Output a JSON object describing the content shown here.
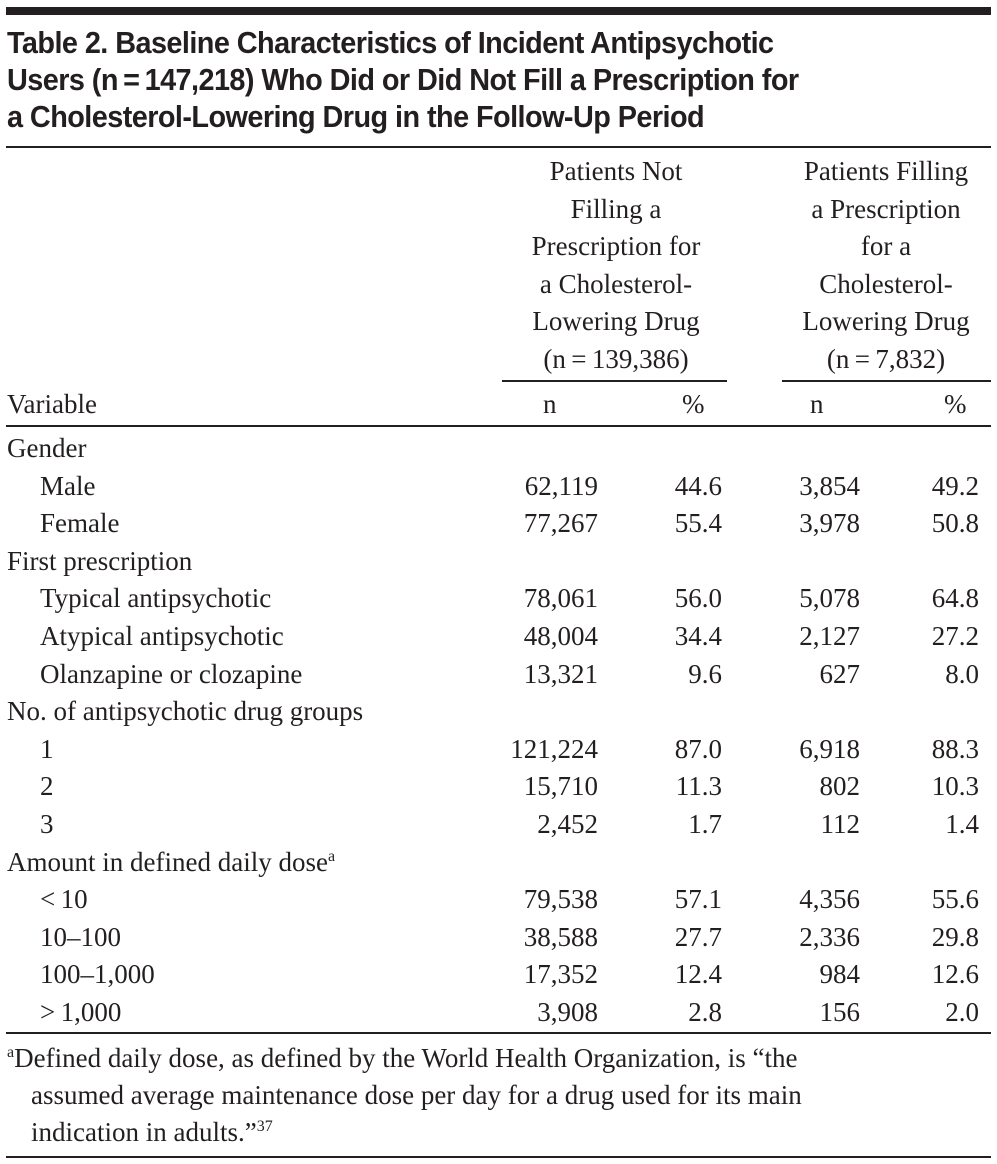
{
  "table": {
    "title_lines": [
      "Table 2. Baseline Characteristics of Incident Antipsychotic",
      "Users (n = 147,218) Who Did or Did Not Fill a Prescription for",
      "a Cholesterol-Lowering Drug in the Follow-Up Period"
    ],
    "column_groups": [
      {
        "header_lines": [
          "Patients Not",
          "Filling a",
          "Prescription for",
          "a Cholesterol-",
          "Lowering Drug",
          "(n = 139,386)"
        ],
        "subcolumns": [
          "n",
          "%"
        ]
      },
      {
        "header_lines": [
          "Patients Filling",
          "a Prescription",
          "for a",
          "Cholesterol-",
          "Lowering Drug",
          "(n = 7,832)"
        ],
        "subcolumns": [
          "n",
          "%"
        ]
      }
    ],
    "variable_header": "Variable",
    "rows": [
      {
        "label": "Gender",
        "type": "group"
      },
      {
        "label": "Male",
        "type": "item",
        "values": [
          "62,119",
          "44.6",
          "3,854",
          "49.2"
        ]
      },
      {
        "label": "Female",
        "type": "item",
        "values": [
          "77,267",
          "55.4",
          "3,978",
          "50.8"
        ]
      },
      {
        "label": "First prescription",
        "type": "group"
      },
      {
        "label": "Typical antipsychotic",
        "type": "item",
        "values": [
          "78,061",
          "56.0",
          "5,078",
          "64.8"
        ]
      },
      {
        "label": "Atypical antipsychotic",
        "type": "item",
        "values": [
          "48,004",
          "34.4",
          "2,127",
          "27.2"
        ]
      },
      {
        "label": "Olanzapine or clozapine",
        "type": "item",
        "values": [
          "13,321",
          "9.6",
          "627",
          "8.0"
        ]
      },
      {
        "label": "No. of antipsychotic drug groups",
        "type": "group"
      },
      {
        "label": "1",
        "type": "item",
        "values": [
          "121,224",
          "87.0",
          "6,918",
          "88.3"
        ]
      },
      {
        "label": "2",
        "type": "item",
        "values": [
          "15,710",
          "11.3",
          "802",
          "10.3"
        ]
      },
      {
        "label": "3",
        "type": "item",
        "values": [
          "2,452",
          "1.7",
          "112",
          "1.4"
        ]
      },
      {
        "label": "Amount in defined daily dose",
        "type": "group",
        "sup": "a"
      },
      {
        "label": "< 10",
        "type": "item",
        "values": [
          "79,538",
          "57.1",
          "4,356",
          "55.6"
        ]
      },
      {
        "label": "10–100",
        "type": "item",
        "values": [
          "38,588",
          "27.7",
          "2,336",
          "29.8"
        ]
      },
      {
        "label": "100–1,000",
        "type": "item",
        "values": [
          "17,352",
          "12.4",
          "984",
          "12.6"
        ]
      },
      {
        "label": "> 1,000",
        "type": "item",
        "values": [
          "3,908",
          "2.8",
          "156",
          "2.0"
        ]
      }
    ],
    "footnote": {
      "marker": "a",
      "lines": [
        "Defined daily dose, as defined by the World Health Organization, is “the",
        "assumed average maintenance dose per day for a drug used for its main",
        "indication in adults.”"
      ],
      "reference": "37"
    }
  }
}
